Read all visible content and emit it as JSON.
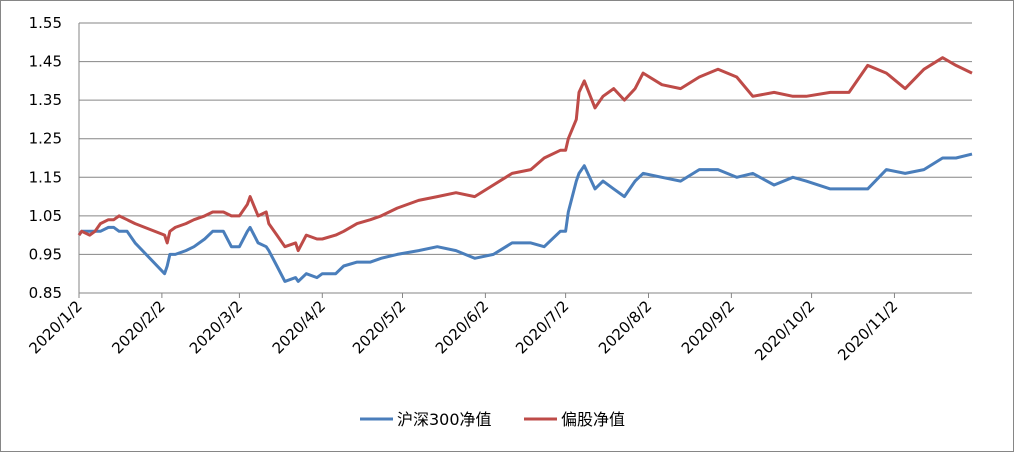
{
  "chart_data": {
    "type": "line",
    "title": "",
    "xlabel": "",
    "ylabel": "",
    "ylim": [
      0.85,
      1.55
    ],
    "y_ticks": [
      "0.85",
      "0.95",
      "1.05",
      "1.15",
      "1.25",
      "1.35",
      "1.45",
      "1.55"
    ],
    "x_tick_labels": [
      "2020/1/2",
      "2020/2/2",
      "2020/3/2",
      "2020/4/2",
      "2020/5/2",
      "2020/6/2",
      "2020/7/2",
      "2020/8/2",
      "2020/9/2",
      "2020/10/2",
      "2020/11/2"
    ],
    "x_range": [
      "2020/1/2",
      "2020/12/1"
    ],
    "grid": "horizontal",
    "legend_position": "bottom",
    "series": [
      {
        "name": "沪深300净值",
        "color": "#4a7ebb",
        "x": [
          "2020/1/2",
          "2020/1/3",
          "2020/1/6",
          "2020/1/8",
          "2020/1/10",
          "2020/1/13",
          "2020/1/15",
          "2020/1/17",
          "2020/1/20",
          "2020/1/23",
          "2020/2/3",
          "2020/2/4",
          "2020/2/5",
          "2020/2/7",
          "2020/2/11",
          "2020/2/14",
          "2020/2/18",
          "2020/2/21",
          "2020/2/25",
          "2020/2/28",
          "2020/3/2",
          "2020/3/5",
          "2020/3/6",
          "2020/3/9",
          "2020/3/12",
          "2020/3/13",
          "2020/3/16",
          "2020/3/19",
          "2020/3/23",
          "2020/3/24",
          "2020/3/27",
          "2020/3/31",
          "2020/4/2",
          "2020/4/7",
          "2020/4/10",
          "2020/4/15",
          "2020/4/20",
          "2020/4/24",
          "2020/4/30",
          "2020/5/8",
          "2020/5/15",
          "2020/5/22",
          "2020/5/29",
          "2020/6/5",
          "2020/6/12",
          "2020/6/19",
          "2020/6/24",
          "2020/6/30",
          "2020/7/2",
          "2020/7/3",
          "2020/7/6",
          "2020/7/7",
          "2020/7/9",
          "2020/7/13",
          "2020/7/16",
          "2020/7/20",
          "2020/7/24",
          "2020/7/28",
          "2020/7/31",
          "2020/8/7",
          "2020/8/14",
          "2020/8/21",
          "2020/8/28",
          "2020/9/4",
          "2020/9/10",
          "2020/9/18",
          "2020/9/25",
          "2020/9/30",
          "2020/10/9",
          "2020/10/16",
          "2020/10/23",
          "2020/10/30",
          "2020/11/6",
          "2020/11/13",
          "2020/11/20",
          "2020/11/25",
          "2020/12/1"
        ],
        "values": [
          1.0,
          1.01,
          1.01,
          1.01,
          1.01,
          1.02,
          1.02,
          1.01,
          1.01,
          0.98,
          0.9,
          0.92,
          0.95,
          0.95,
          0.96,
          0.97,
          0.99,
          1.01,
          1.01,
          0.97,
          0.97,
          1.01,
          1.02,
          0.98,
          0.97,
          0.96,
          0.92,
          0.88,
          0.89,
          0.88,
          0.9,
          0.89,
          0.9,
          0.9,
          0.92,
          0.93,
          0.93,
          0.94,
          0.95,
          0.96,
          0.97,
          0.96,
          0.94,
          0.95,
          0.98,
          0.98,
          0.97,
          1.01,
          1.01,
          1.06,
          1.14,
          1.16,
          1.18,
          1.12,
          1.14,
          1.12,
          1.1,
          1.14,
          1.16,
          1.15,
          1.14,
          1.17,
          1.17,
          1.15,
          1.16,
          1.13,
          1.15,
          1.14,
          1.12,
          1.12,
          1.12,
          1.17,
          1.16,
          1.17,
          1.2,
          1.2,
          1.21
        ]
      },
      {
        "name": "偏股净值",
        "color": "#be4b48",
        "x": [
          "2020/1/2",
          "2020/1/3",
          "2020/1/6",
          "2020/1/8",
          "2020/1/10",
          "2020/1/13",
          "2020/1/15",
          "2020/1/17",
          "2020/1/20",
          "2020/1/23",
          "2020/2/3",
          "2020/2/4",
          "2020/2/5",
          "2020/2/7",
          "2020/2/11",
          "2020/2/14",
          "2020/2/18",
          "2020/2/21",
          "2020/2/25",
          "2020/2/28",
          "2020/3/2",
          "2020/3/5",
          "2020/3/6",
          "2020/3/9",
          "2020/3/12",
          "2020/3/13",
          "2020/3/16",
          "2020/3/19",
          "2020/3/23",
          "2020/3/24",
          "2020/3/27",
          "2020/3/31",
          "2020/4/2",
          "2020/4/7",
          "2020/4/10",
          "2020/4/15",
          "2020/4/20",
          "2020/4/24",
          "2020/4/30",
          "2020/5/8",
          "2020/5/15",
          "2020/5/22",
          "2020/5/29",
          "2020/6/5",
          "2020/6/12",
          "2020/6/19",
          "2020/6/24",
          "2020/6/30",
          "2020/7/2",
          "2020/7/3",
          "2020/7/6",
          "2020/7/7",
          "2020/7/9",
          "2020/7/13",
          "2020/7/16",
          "2020/7/20",
          "2020/7/24",
          "2020/7/28",
          "2020/7/31",
          "2020/8/7",
          "2020/8/14",
          "2020/8/21",
          "2020/8/28",
          "2020/9/4",
          "2020/9/10",
          "2020/9/18",
          "2020/9/25",
          "2020/9/30",
          "2020/10/9",
          "2020/10/16",
          "2020/10/23",
          "2020/10/30",
          "2020/11/6",
          "2020/11/13",
          "2020/11/20",
          "2020/11/25",
          "2020/12/1"
        ],
        "values": [
          1.0,
          1.01,
          1.0,
          1.01,
          1.03,
          1.04,
          1.04,
          1.05,
          1.04,
          1.03,
          1.0,
          0.98,
          1.01,
          1.02,
          1.03,
          1.04,
          1.05,
          1.06,
          1.06,
          1.05,
          1.05,
          1.08,
          1.1,
          1.05,
          1.06,
          1.03,
          1.0,
          0.97,
          0.98,
          0.96,
          1.0,
          0.99,
          0.99,
          1.0,
          1.01,
          1.03,
          1.04,
          1.05,
          1.07,
          1.09,
          1.1,
          1.11,
          1.1,
          1.13,
          1.16,
          1.17,
          1.2,
          1.22,
          1.22,
          1.25,
          1.3,
          1.37,
          1.4,
          1.33,
          1.36,
          1.38,
          1.35,
          1.38,
          1.42,
          1.39,
          1.38,
          1.41,
          1.43,
          1.41,
          1.36,
          1.37,
          1.36,
          1.36,
          1.37,
          1.37,
          1.44,
          1.42,
          1.38,
          1.43,
          1.46,
          1.44,
          1.42
        ]
      }
    ]
  }
}
